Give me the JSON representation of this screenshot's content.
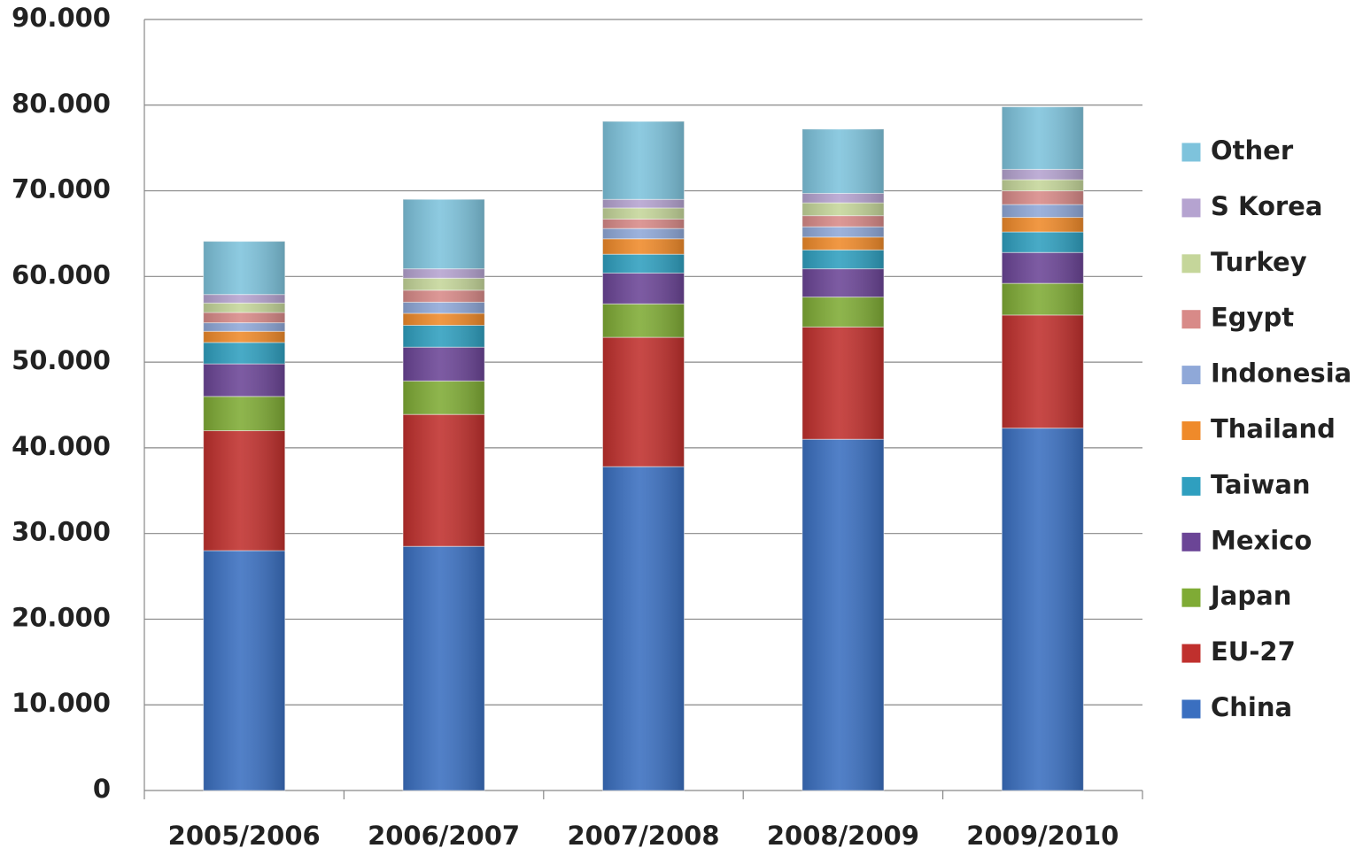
{
  "chart_data": {
    "type": "stacked_bar",
    "categories": [
      "2005/2006",
      "2006/2007",
      "2007/2008",
      "2008/2009",
      "2009/2010"
    ],
    "series": [
      {
        "name": "China",
        "color": "#3a6fc0",
        "values": [
          28000,
          28500,
          37800,
          41000,
          42300
        ]
      },
      {
        "name": "EU-27",
        "color": "#c0302d",
        "values": [
          14000,
          15400,
          15100,
          13100,
          13200
        ]
      },
      {
        "name": "Japan",
        "color": "#7fab35",
        "values": [
          4000,
          3900,
          3900,
          3500,
          3700
        ]
      },
      {
        "name": "Mexico",
        "color": "#6b4596",
        "values": [
          3800,
          3950,
          3600,
          3300,
          3600
        ]
      },
      {
        "name": "Taiwan",
        "color": "#2f9fbf",
        "values": [
          2500,
          2550,
          2200,
          2200,
          2400
        ]
      },
      {
        "name": "Thailand",
        "color": "#ef8a2a",
        "values": [
          1300,
          1400,
          1800,
          1500,
          1700
        ]
      },
      {
        "name": "Indonesia",
        "color": "#8fa8d8",
        "values": [
          1000,
          1300,
          1200,
          1200,
          1500
        ]
      },
      {
        "name": "Egypt",
        "color": "#d88a88",
        "values": [
          1200,
          1400,
          1100,
          1300,
          1600
        ]
      },
      {
        "name": "Turkey",
        "color": "#c5d69a",
        "values": [
          1100,
          1400,
          1300,
          1500,
          1300
        ]
      },
      {
        "name": "S Korea",
        "color": "#b5a3d0",
        "values": [
          1000,
          1100,
          1000,
          1100,
          1200
        ]
      },
      {
        "name": "Other",
        "color": "#7ec3dc",
        "values": [
          6200,
          8100,
          9100,
          7500,
          7300
        ]
      }
    ],
    "ylim": [
      0,
      90000
    ],
    "yticks": [
      0,
      {
        "value": 10000,
        "label": "10.000"
      },
      {
        "value": 20000,
        "label": "20.000"
      },
      {
        "value": 30000,
        "label": "30.000"
      },
      {
        "value": 40000,
        "label": "40.000"
      },
      {
        "value": 50000,
        "label": "50.000"
      },
      {
        "value": 60000,
        "label": "60.000"
      },
      {
        "value": 70000,
        "label": "70.000"
      },
      {
        "value": 80000,
        "label": "80.000"
      },
      {
        "value": 90000,
        "label": "90.000"
      }
    ],
    "grid": true,
    "legend": "right"
  }
}
